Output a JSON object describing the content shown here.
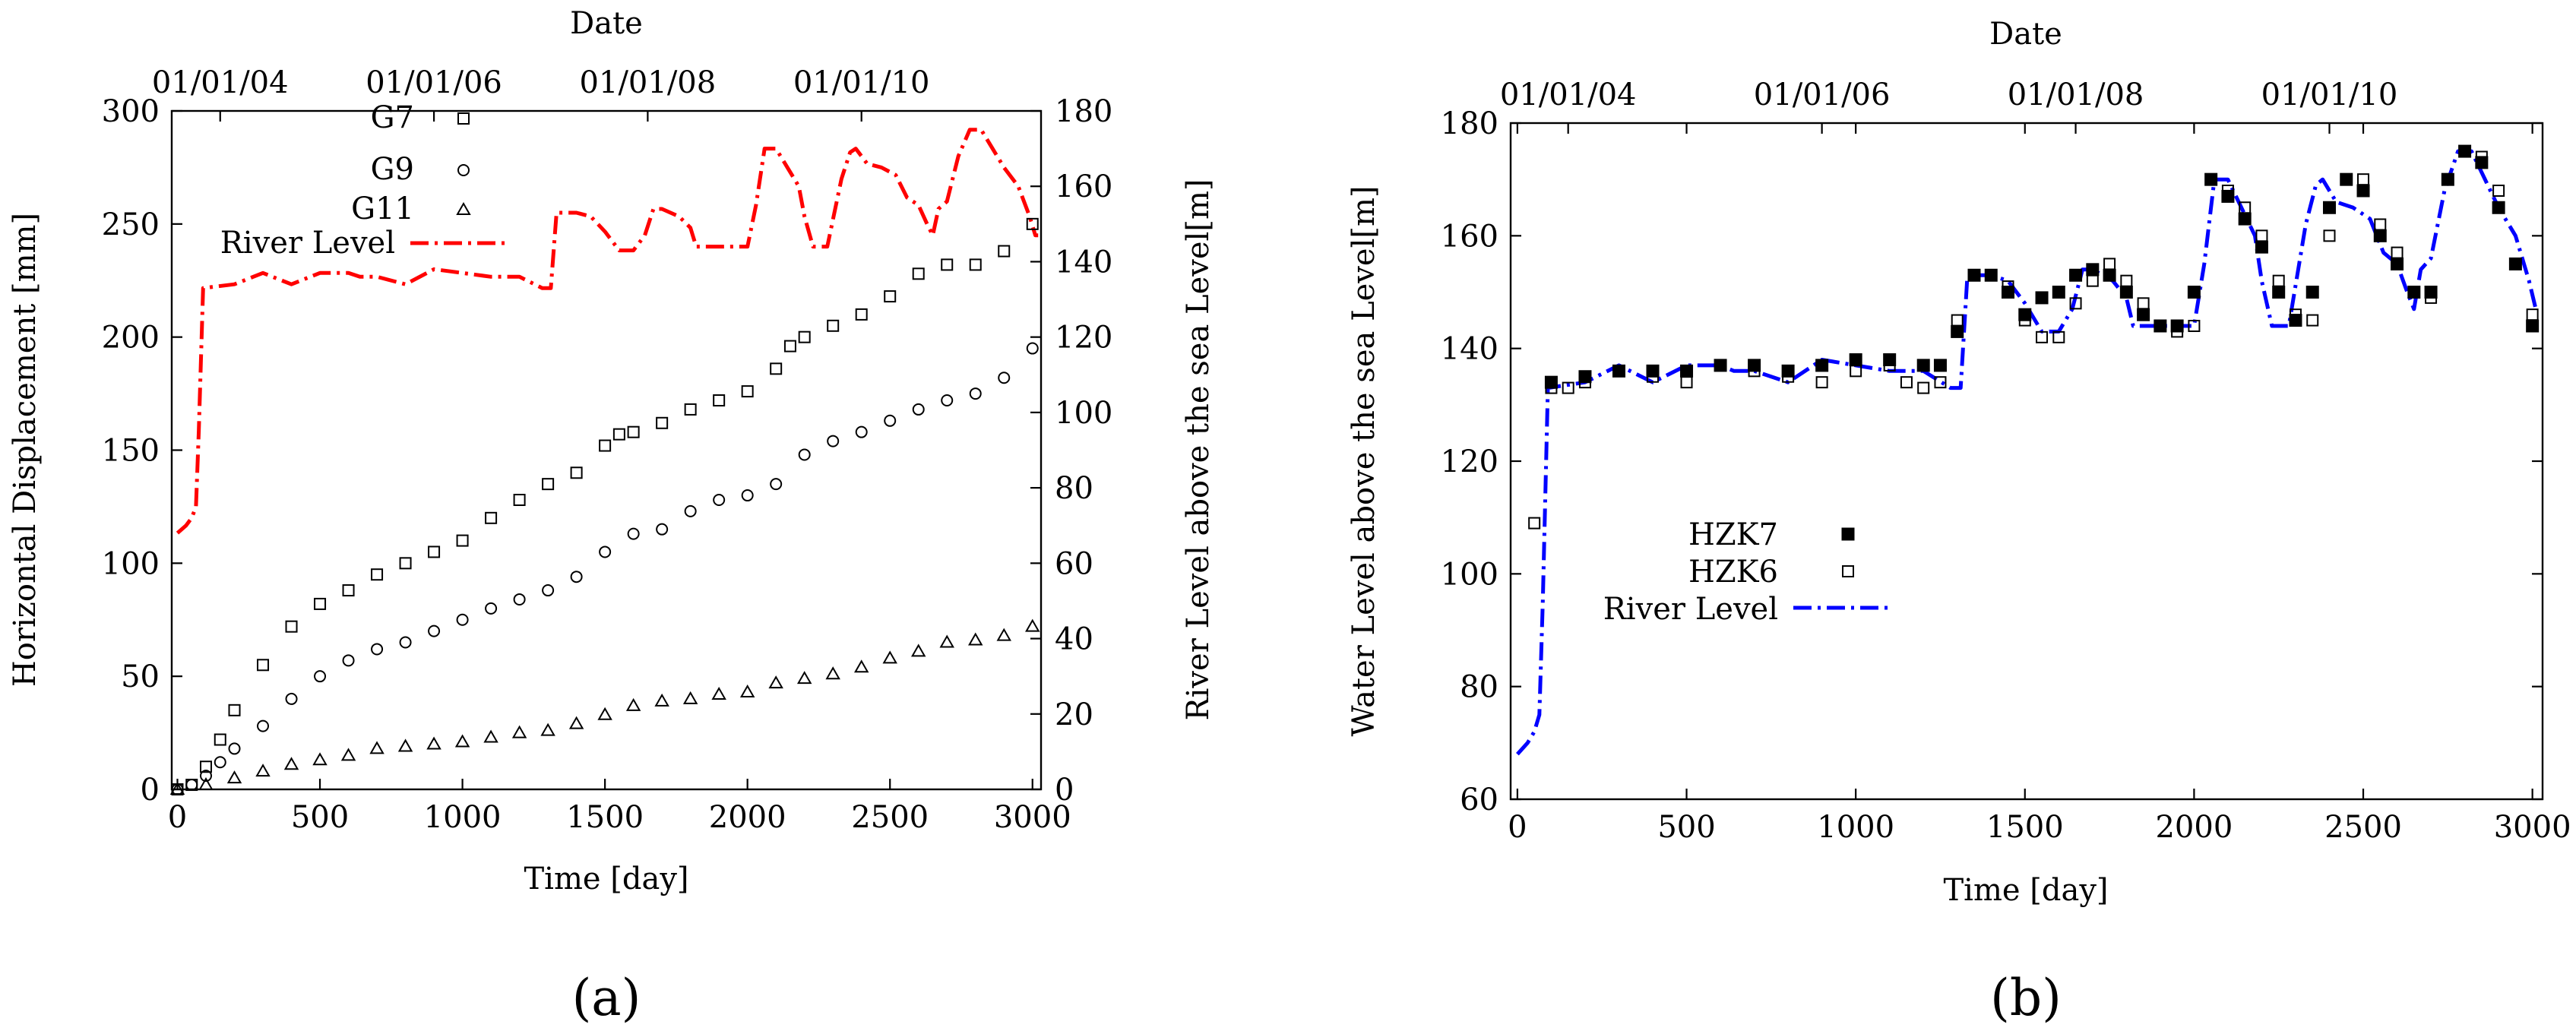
{
  "chart_data": [
    {
      "type": "scatter",
      "panel_label": "(a)",
      "title": "",
      "top_axis": {
        "label": "Date",
        "tick_labels": [
          "01/01/04",
          "01/01/06",
          "01/01/08",
          "01/01/10"
        ],
        "tick_positions_day": [
          150,
          900,
          1650,
          2400
        ]
      },
      "xlabel": "Time [day]",
      "ylabel": "Horizontal Displacement [mm]",
      "ylabel_right": "River Level above the sea Level[m]",
      "xlim": [
        -20,
        3030
      ],
      "ylim": [
        0,
        300
      ],
      "ylim_right": [
        0,
        180
      ],
      "xticks": [
        0,
        500,
        1000,
        1500,
        2000,
        2500,
        3000
      ],
      "yticks": [
        0,
        50,
        100,
        150,
        200,
        250,
        300
      ],
      "yticks_right": [
        0,
        20,
        40,
        60,
        80,
        100,
        120,
        140,
        160,
        180
      ],
      "legend_position": "top-left",
      "series": [
        {
          "name": "G7",
          "marker": "square",
          "axis": "left",
          "color": "#000000",
          "x": [
            0,
            50,
            100,
            150,
            200,
            300,
            400,
            500,
            600,
            700,
            800,
            900,
            1000,
            1100,
            1200,
            1300,
            1400,
            1500,
            1550,
            1600,
            1700,
            1800,
            1900,
            2000,
            2100,
            2150,
            2200,
            2300,
            2400,
            2500,
            2600,
            2700,
            2800,
            2900,
            3000
          ],
          "y": [
            0,
            2,
            10,
            22,
            35,
            55,
            72,
            82,
            88,
            95,
            100,
            105,
            110,
            120,
            128,
            135,
            140,
            152,
            157,
            158,
            162,
            168,
            172,
            176,
            186,
            196,
            200,
            205,
            210,
            218,
            228,
            232,
            232,
            238,
            250
          ]
        },
        {
          "name": "G9",
          "marker": "circle",
          "axis": "left",
          "color": "#000000",
          "x": [
            0,
            50,
            100,
            150,
            200,
            300,
            400,
            500,
            600,
            700,
            800,
            900,
            1000,
            1100,
            1200,
            1300,
            1400,
            1500,
            1600,
            1700,
            1800,
            1900,
            2000,
            2100,
            2200,
            2300,
            2400,
            2500,
            2600,
            2700,
            2800,
            2900,
            3000
          ],
          "y": [
            0,
            2,
            6,
            12,
            18,
            28,
            40,
            50,
            57,
            62,
            65,
            70,
            75,
            80,
            84,
            88,
            94,
            105,
            113,
            115,
            123,
            128,
            130,
            135,
            148,
            154,
            158,
            163,
            168,
            172,
            175,
            182,
            195
          ]
        },
        {
          "name": "G11",
          "marker": "triangle",
          "axis": "left",
          "color": "#000000",
          "x": [
            0,
            100,
            200,
            300,
            400,
            500,
            600,
            700,
            800,
            900,
            1000,
            1100,
            1200,
            1300,
            1400,
            1500,
            1600,
            1700,
            1800,
            1900,
            2000,
            2100,
            2200,
            2300,
            2400,
            2500,
            2600,
            2700,
            2800,
            2900,
            3000
          ],
          "y": [
            0,
            2,
            5,
            8,
            11,
            13,
            15,
            18,
            19,
            20,
            21,
            23,
            25,
            26,
            29,
            33,
            37,
            39,
            40,
            42,
            43,
            47,
            49,
            51,
            54,
            58,
            61,
            65,
            66,
            68,
            72
          ]
        },
        {
          "name": "River Level",
          "marker": "line-dashdot",
          "axis": "right",
          "color": "#ff0000",
          "x": [
            0,
            30,
            50,
            65,
            75,
            90,
            200,
            300,
            400,
            500,
            600,
            640,
            700,
            800,
            900,
            1000,
            1100,
            1200,
            1280,
            1310,
            1330,
            1400,
            1450,
            1500,
            1550,
            1600,
            1640,
            1670,
            1700,
            1760,
            1800,
            1820,
            1900,
            1960,
            2000,
            2030,
            2060,
            2100,
            2140,
            2180,
            2200,
            2230,
            2280,
            2330,
            2360,
            2380,
            2420,
            2470,
            2520,
            2560,
            2600,
            2630,
            2650,
            2670,
            2700,
            2740,
            2780,
            2820,
            2860,
            2900,
            2950,
            2990,
            3010,
            3020
          ],
          "y": [
            68,
            70,
            72,
            75,
            95,
            133,
            134,
            137,
            134,
            137,
            137,
            136,
            136,
            134,
            138,
            137,
            136,
            136,
            133,
            133,
            153,
            153,
            152,
            148,
            143,
            143,
            147,
            154,
            154,
            152,
            149,
            144,
            144,
            144,
            144,
            155,
            170,
            170,
            165,
            160,
            152,
            144,
            144,
            162,
            169,
            170,
            166,
            165,
            163,
            157,
            155,
            150,
            147,
            154,
            156,
            168,
            175,
            175,
            170,
            165,
            160,
            152,
            147,
            147
          ]
        }
      ]
    },
    {
      "type": "scatter",
      "panel_label": "(b)",
      "title": "",
      "top_axis": {
        "label": "Date",
        "tick_labels": [
          "01/01/04",
          "01/01/06",
          "01/01/08",
          "01/01/10"
        ],
        "tick_positions_day": [
          150,
          900,
          1650,
          2400
        ]
      },
      "xlabel": "Time [day]",
      "ylabel": "Water Level above the sea Level[m]",
      "xlim": [
        -20,
        3030
      ],
      "ylim": [
        60,
        180
      ],
      "xticks": [
        0,
        500,
        1000,
        1500,
        2000,
        2500,
        3000
      ],
      "yticks": [
        60,
        80,
        100,
        120,
        140,
        160,
        180
      ],
      "legend_position": "center-left",
      "series": [
        {
          "name": "HZK7",
          "marker": "filled-square",
          "color": "#000000",
          "x": [
            100,
            200,
            300,
            400,
            500,
            600,
            700,
            800,
            900,
            1000,
            1100,
            1200,
            1250,
            1300,
            1350,
            1400,
            1450,
            1500,
            1550,
            1600,
            1650,
            1700,
            1750,
            1800,
            1850,
            1900,
            1950,
            2000,
            2050,
            2100,
            2150,
            2200,
            2250,
            2300,
            2350,
            2400,
            2450,
            2500,
            2550,
            2600,
            2650,
            2700,
            2750,
            2800,
            2850,
            2900,
            2950,
            3000
          ],
          "y": [
            134,
            135,
            136,
            136,
            136,
            137,
            137,
            136,
            137,
            138,
            138,
            137,
            137,
            143,
            153,
            153,
            150,
            146,
            149,
            150,
            153,
            154,
            153,
            150,
            146,
            144,
            144,
            150,
            170,
            167,
            163,
            158,
            150,
            145,
            150,
            165,
            170,
            168,
            160,
            155,
            150,
            150,
            170,
            175,
            173,
            165,
            155,
            144
          ]
        },
        {
          "name": "HZK6",
          "marker": "square",
          "color": "#000000",
          "x": [
            50,
            100,
            150,
            200,
            300,
            400,
            500,
            600,
            700,
            800,
            900,
            1000,
            1100,
            1150,
            1200,
            1250,
            1300,
            1350,
            1400,
            1450,
            1500,
            1550,
            1600,
            1650,
            1700,
            1750,
            1800,
            1850,
            1900,
            1950,
            2000,
            2050,
            2100,
            2150,
            2200,
            2250,
            2300,
            2350,
            2400,
            2450,
            2500,
            2550,
            2600,
            2650,
            2700,
            2750,
            2800,
            2850,
            2900,
            2950,
            3000
          ],
          "y": [
            109,
            133,
            133,
            134,
            136,
            135,
            134,
            137,
            136,
            135,
            134,
            136,
            137,
            134,
            133,
            134,
            145,
            153,
            153,
            151,
            145,
            142,
            142,
            148,
            152,
            155,
            152,
            148,
            144,
            143,
            144,
            170,
            168,
            165,
            160,
            152,
            146,
            145,
            160,
            170,
            170,
            162,
            157,
            150,
            149,
            170,
            175,
            174,
            168,
            155,
            146
          ]
        },
        {
          "name": "River Level",
          "marker": "line-dashdot",
          "color": "#0000ff",
          "x": [
            0,
            30,
            50,
            65,
            75,
            90,
            200,
            300,
            400,
            500,
            600,
            640,
            700,
            800,
            900,
            1000,
            1100,
            1200,
            1280,
            1310,
            1330,
            1400,
            1450,
            1500,
            1550,
            1600,
            1640,
            1670,
            1700,
            1760,
            1800,
            1820,
            1900,
            1960,
            2000,
            2030,
            2060,
            2100,
            2140,
            2180,
            2200,
            2230,
            2280,
            2330,
            2360,
            2380,
            2420,
            2470,
            2520,
            2560,
            2600,
            2630,
            2650,
            2670,
            2700,
            2740,
            2780,
            2820,
            2860,
            2900,
            2950,
            2990,
            3010,
            3020
          ],
          "y": [
            68,
            70,
            72,
            75,
            95,
            133,
            134,
            137,
            134,
            137,
            137,
            136,
            136,
            134,
            138,
            137,
            136,
            136,
            133,
            133,
            153,
            153,
            152,
            148,
            143,
            143,
            147,
            154,
            154,
            152,
            149,
            144,
            144,
            144,
            144,
            155,
            170,
            170,
            165,
            160,
            152,
            144,
            144,
            162,
            169,
            170,
            166,
            165,
            163,
            157,
            155,
            150,
            147,
            154,
            156,
            168,
            175,
            175,
            170,
            165,
            160,
            152,
            147,
            147
          ]
        }
      ]
    }
  ]
}
